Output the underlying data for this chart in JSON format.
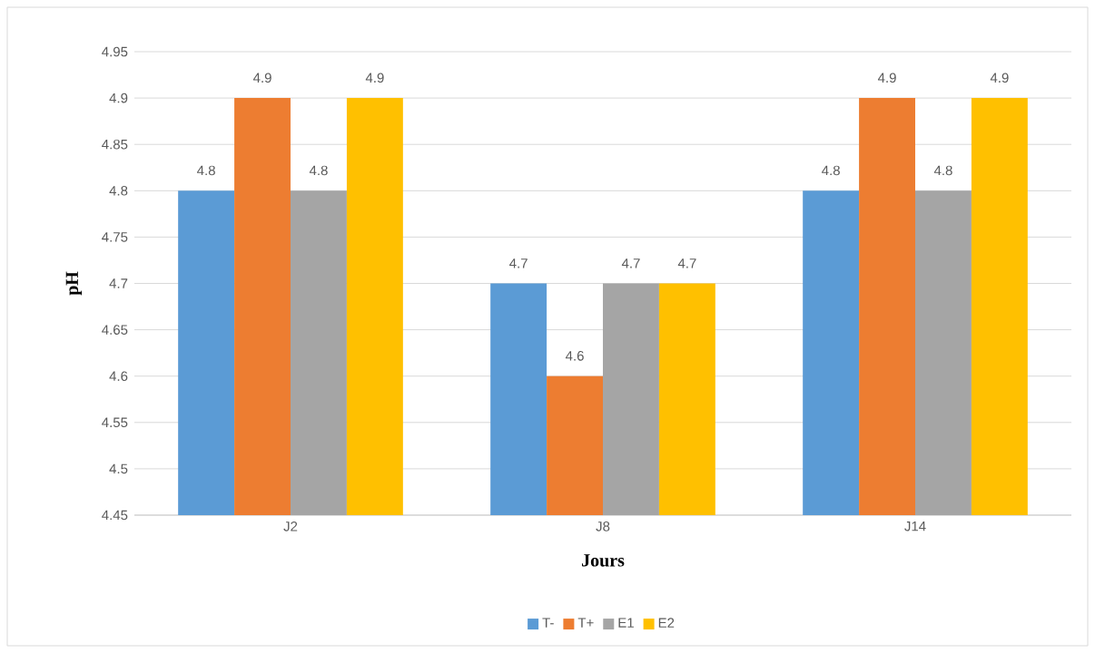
{
  "chart_data": {
    "type": "bar",
    "xlabel": "Jours",
    "ylabel": "pH",
    "categories": [
      "J2",
      "J8",
      "J14"
    ],
    "series": [
      {
        "name": "T-",
        "color": "#5b9bd5",
        "values": [
          4.8,
          4.7,
          4.8
        ]
      },
      {
        "name": "T+",
        "color": "#ed7d31",
        "values": [
          4.9,
          4.6,
          4.9
        ]
      },
      {
        "name": "E1",
        "color": "#a5a5a5",
        "values": [
          4.8,
          4.7,
          4.8
        ]
      },
      {
        "name": "E2",
        "color": "#ffc000",
        "values": [
          4.9,
          4.7,
          4.9
        ]
      }
    ],
    "ylim": [
      4.45,
      4.95
    ],
    "yticks": [
      4.45,
      4.5,
      4.55,
      4.6,
      4.65,
      4.7,
      4.75,
      4.8,
      4.85,
      4.9,
      4.95
    ],
    "grid": "y",
    "legend": "bottom",
    "data_labels": true
  }
}
